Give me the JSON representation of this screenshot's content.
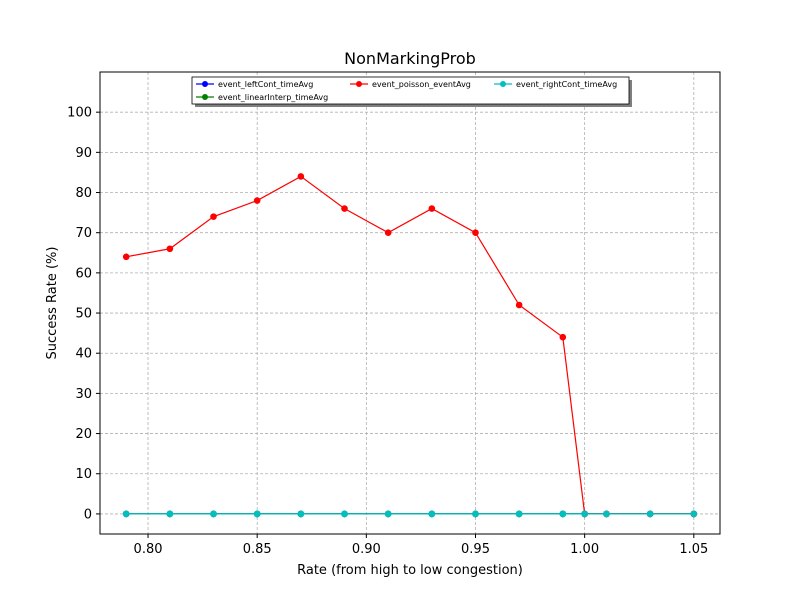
{
  "chart_data": {
    "type": "line",
    "title": "NonMarkingProb",
    "xlabel": "Rate (from high to low congestion)",
    "ylabel": "Success Rate (%)",
    "xlim": [
      0.778,
      1.062
    ],
    "ylim": [
      -5,
      110
    ],
    "xticks": [
      0.8,
      0.85,
      0.9,
      0.95,
      1.0,
      1.05
    ],
    "xtick_labels": [
      "0.80",
      "0.85",
      "0.90",
      "0.95",
      "1.00",
      "1.05"
    ],
    "yticks": [
      0,
      10,
      20,
      30,
      40,
      50,
      60,
      70,
      80,
      90,
      100
    ],
    "ytick_labels": [
      "0",
      "10",
      "20",
      "30",
      "40",
      "50",
      "60",
      "70",
      "80",
      "90",
      "100"
    ],
    "grid": true,
    "legend_position": "top-center",
    "x": [
      0.79,
      0.81,
      0.83,
      0.85,
      0.87,
      0.89,
      0.91,
      0.93,
      0.95,
      0.97,
      0.99,
      1.0,
      1.01,
      1.03,
      1.05
    ],
    "series": [
      {
        "name": "event_leftCont_timeAvg",
        "color": "#0000ff",
        "values": [
          0,
          0,
          0,
          0,
          0,
          0,
          0,
          0,
          0,
          0,
          0,
          0,
          0,
          0,
          0
        ]
      },
      {
        "name": "event_linearInterp_timeAvg",
        "color": "#008000",
        "values": [
          0,
          0,
          0,
          0,
          0,
          0,
          0,
          0,
          0,
          0,
          0,
          0,
          0,
          0,
          0
        ]
      },
      {
        "name": "event_poisson_eventAvg",
        "color": "#ff0000",
        "values": [
          64,
          66,
          74,
          78,
          84,
          76,
          70,
          76,
          70,
          52,
          44,
          0,
          0,
          0,
          0
        ]
      },
      {
        "name": "event_rightCont_timeAvg",
        "color": "#00bfbf",
        "values": [
          0,
          0,
          0,
          0,
          0,
          0,
          0,
          0,
          0,
          0,
          0,
          0,
          0,
          0,
          0
        ]
      }
    ]
  }
}
